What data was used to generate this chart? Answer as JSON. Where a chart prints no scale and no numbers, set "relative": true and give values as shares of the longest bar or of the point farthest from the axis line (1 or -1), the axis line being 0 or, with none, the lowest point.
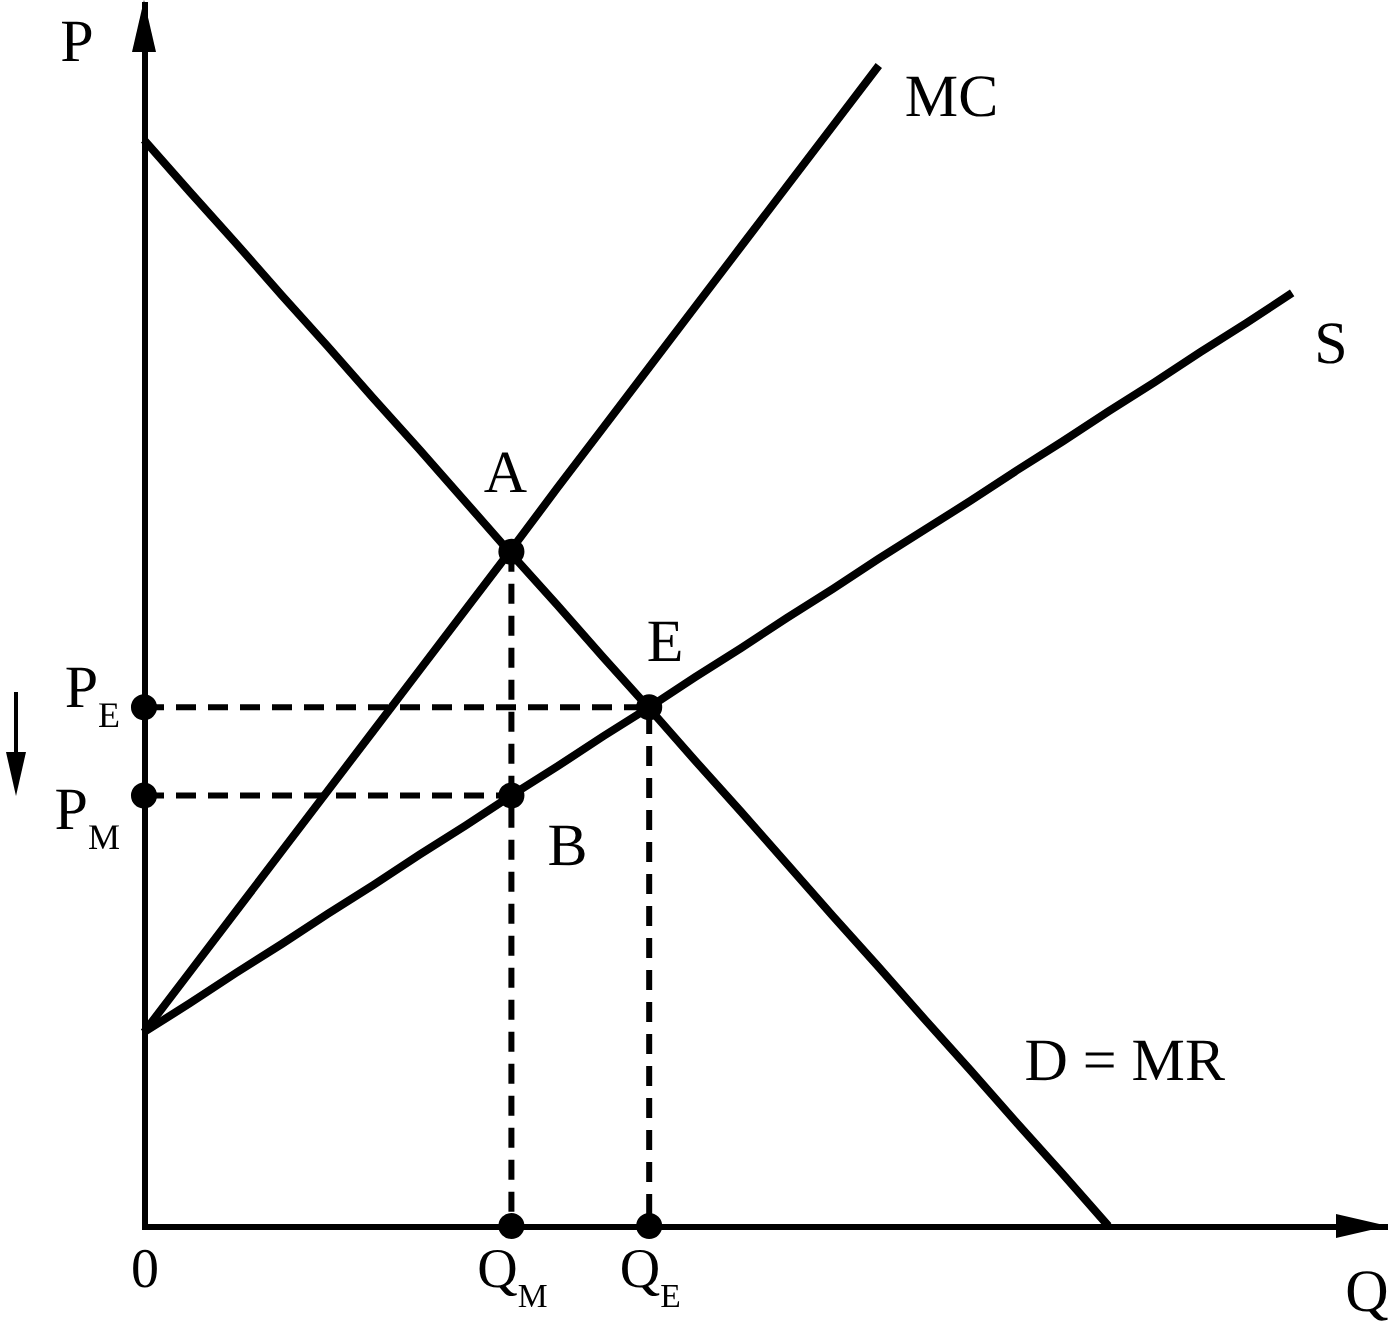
{
  "chart_data": {
    "type": "line",
    "relative": true,
    "xlabel": "Q",
    "ylabel": "P",
    "categories": [
      "0",
      null,
      null,
      null,
      null,
      null,
      null,
      null,
      "Q$_{M}$",
      null,
      null,
      "Q$_{E}$",
      null,
      null,
      null,
      null,
      null,
      null,
      null,
      null,
      null,
      null,
      null,
      null,
      null,
      null,
      null,
      null
    ],
    "series": [
      {
        "name": "MC",
        "color": "#000000",
        "values": [
          0.167,
          0.219,
          0.271,
          0.323,
          0.375,
          0.427,
          0.479,
          0.531,
          0.583,
          0.636,
          0.688,
          0.74,
          0.792,
          0.844,
          0.896,
          0.948,
          1,
          null,
          null,
          null,
          null,
          null,
          null,
          null,
          null,
          null,
          null,
          null
        ]
      },
      {
        "name": "S",
        "color": "#000000",
        "values": [
          0.167,
          0.192,
          0.218,
          0.243,
          0.269,
          0.294,
          0.32,
          0.345,
          0.371,
          0.396,
          0.422,
          0.447,
          0.473,
          0.498,
          0.524,
          0.549,
          0.575,
          0.6,
          0.625,
          0.651,
          0.676,
          0.702,
          0.727,
          0.753,
          0.778,
          0.804,
          null,
          null
        ]
      },
      {
        "name": "D = MR",
        "color": "#000000",
        "values": [
          0.936,
          0.891,
          0.847,
          0.802,
          0.758,
          0.713,
          0.669,
          0.624,
          0.579,
          0.535,
          0.49,
          0.446,
          0.401,
          0.357,
          0.312,
          0.267,
          0.223,
          0.178,
          0.134,
          0.089,
          0.045,
          0,
          null,
          null,
          null,
          null,
          null,
          null
        ]
      },
      {
        "color": "#000000",
        "line_style": "dashed",
        "x": [
          "0",
          "Q$_{E}$",
          "Q$_{E}$"
        ],
        "values": [
          0.447,
          0.447,
          0
        ]
      },
      {
        "color": "#000000",
        "line_style": "dashed",
        "x": [
          "0",
          "Q$_{M}$"
        ],
        "values": [
          0.371,
          0.371
        ]
      },
      {
        "color": "#000000",
        "line_style": "dashed",
        "x": [
          "Q$_{M}$",
          "Q$_{M}$"
        ],
        "values": [
          0.581,
          0
        ]
      },
      {
        "type": "scatter",
        "color": "#000000",
        "marker": "circle",
        "x": [
          "Q$_{M}$",
          "Q$_{E}$",
          "Q$_{M}$",
          "0",
          "0",
          "Q$_{M}$",
          "Q$_{E}$"
        ],
        "values": [
          0.581,
          0.447,
          0.371,
          0.447,
          0.371,
          0,
          0
        ]
      }
    ],
    "annotations": [
      {
        "text": "A",
        "x": "Q$_{M}$",
        "y": 0.581
      },
      {
        "text": "E",
        "x": "Q$_{E}$",
        "y": 0.447
      },
      {
        "text": "B",
        "x": "Q$_{M}$",
        "y": 0.371
      },
      {
        "text": "P$_{E}$",
        "x": "0",
        "y": 0.447
      },
      {
        "text": "P$_{M}$",
        "x": "0",
        "y": 0.371
      }
    ]
  }
}
